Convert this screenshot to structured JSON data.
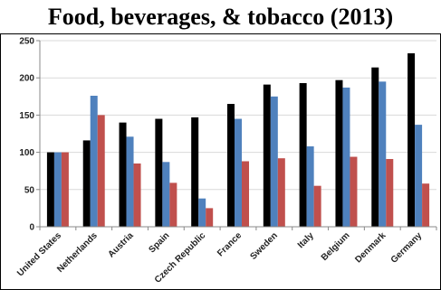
{
  "chart_data": {
    "type": "bar",
    "title": "Food, beverages, & tobacco (2013)",
    "xlabel": "",
    "ylabel": "",
    "ylim": [
      0,
      250
    ],
    "yticks": [
      0,
      50,
      100,
      150,
      200,
      250
    ],
    "grid": true,
    "legend": "none",
    "categories": [
      "United States",
      "Netherlands",
      "Austria",
      "Spain",
      "Czech Republic",
      "France",
      "Sweden",
      "Italy",
      "Belgium",
      "Denmark",
      "Germany"
    ],
    "series": [
      {
        "color": "#000000",
        "values": [
          100,
          116,
          140,
          145,
          147,
          165,
          191,
          193,
          197,
          214,
          233
        ]
      },
      {
        "color": "#4f81bd",
        "values": [
          100,
          176,
          121,
          87,
          38,
          145,
          175,
          108,
          187,
          195,
          137
        ]
      },
      {
        "color": "#c0504d",
        "values": [
          100,
          150,
          85,
          59,
          25,
          88,
          92,
          55,
          94,
          91,
          58
        ]
      }
    ]
  }
}
